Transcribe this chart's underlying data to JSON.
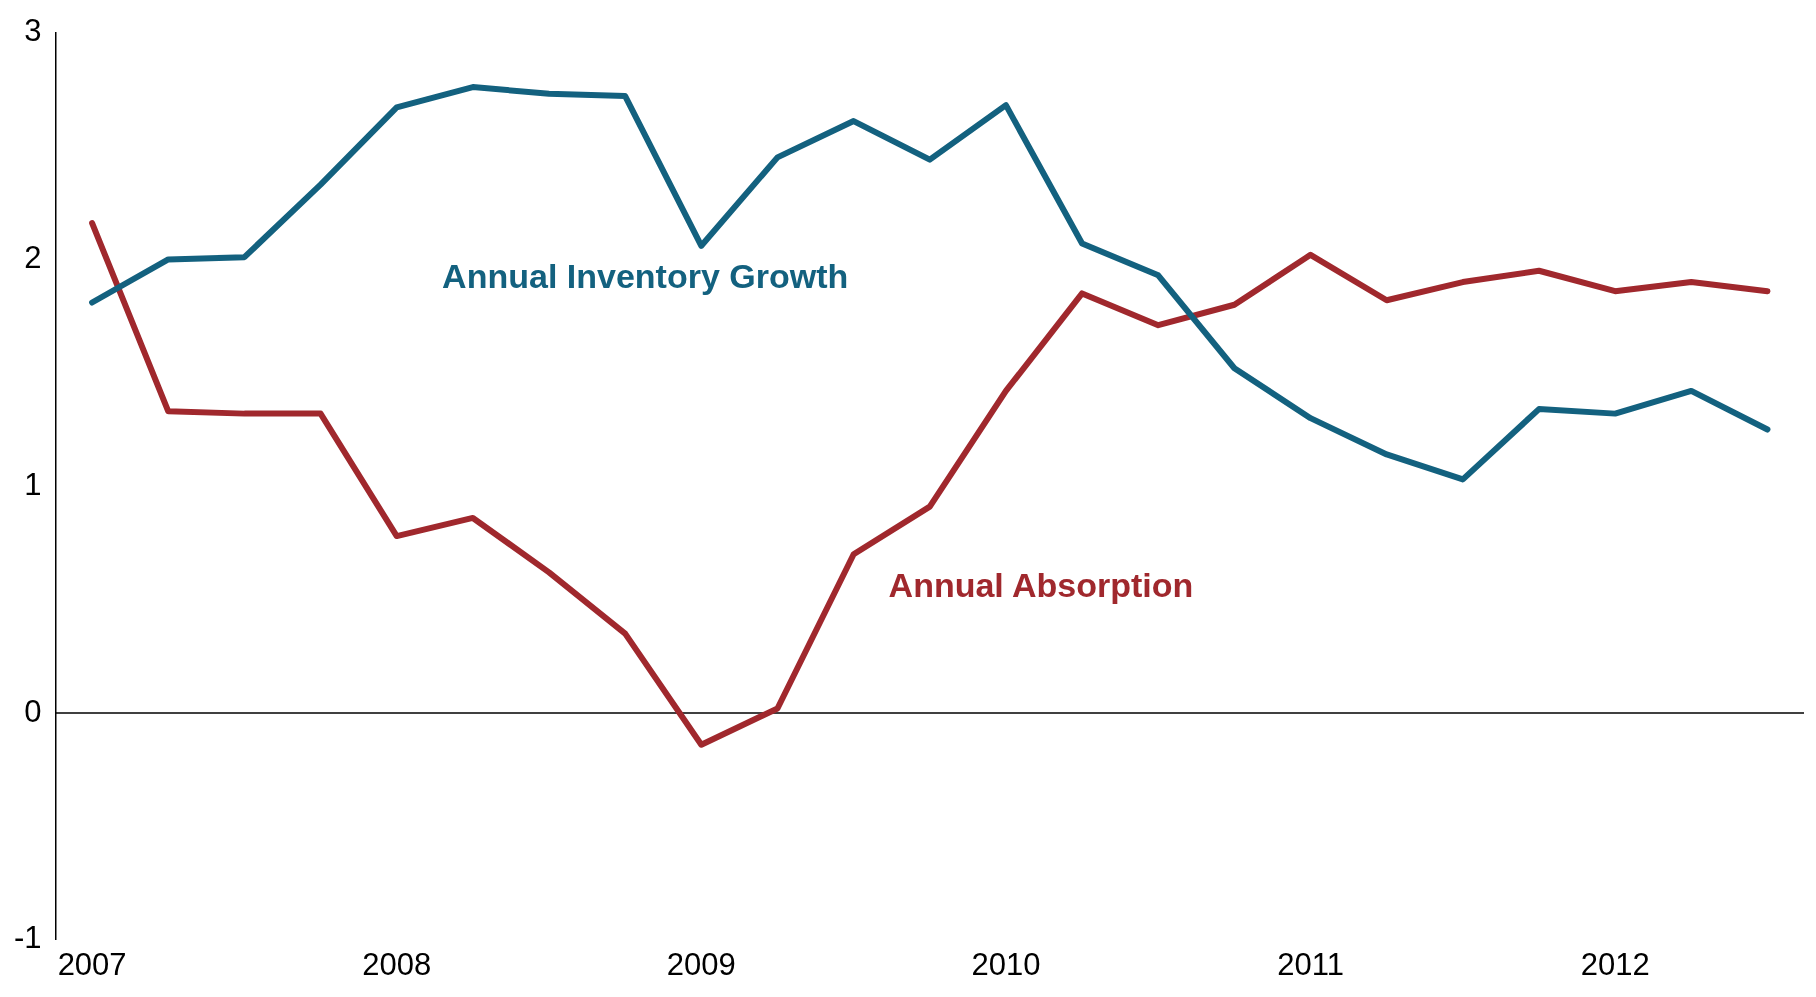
{
  "chart_data": {
    "type": "line",
    "x": [
      2007,
      2007.25,
      2007.5,
      2007.75,
      2008,
      2008.25,
      2008.5,
      2008.75,
      2009,
      2009.25,
      2009.5,
      2009.75,
      2010,
      2010.25,
      2010.5,
      2010.75,
      2011,
      2011.25,
      2011.5,
      2011.75,
      2012,
      2012.25,
      2012.5
    ],
    "series": [
      {
        "name": "Annual Inventory Growth",
        "color": "#13617f",
        "values": [
          1.81,
          2.0,
          2.01,
          2.33,
          2.67,
          2.76,
          2.73,
          2.72,
          2.06,
          2.45,
          2.61,
          2.44,
          2.68,
          2.07,
          1.93,
          1.52,
          1.3,
          1.14,
          1.03,
          1.34,
          1.32,
          1.42,
          1.25
        ]
      },
      {
        "name": "Annual Absorption",
        "color": "#a0282d",
        "values": [
          2.16,
          1.33,
          1.32,
          1.32,
          0.78,
          0.86,
          0.62,
          0.35,
          -0.14,
          0.02,
          0.7,
          0.91,
          1.42,
          1.85,
          1.71,
          1.8,
          2.02,
          1.82,
          1.9,
          1.95,
          1.86,
          1.9,
          1.86
        ]
      }
    ],
    "xlim": [
      2006.88,
      2012.62
    ],
    "xticks": [
      2007,
      2008,
      2009,
      2010,
      2011,
      2012
    ],
    "ylim": [
      -1,
      3
    ],
    "yticks": [
      -1,
      0,
      1,
      2,
      3
    ],
    "ref_lines": [
      {
        "axis": "y",
        "value": 0,
        "color": "#000000"
      }
    ],
    "grid": false,
    "legend": false,
    "marker": "none",
    "line_style": "solid"
  }
}
